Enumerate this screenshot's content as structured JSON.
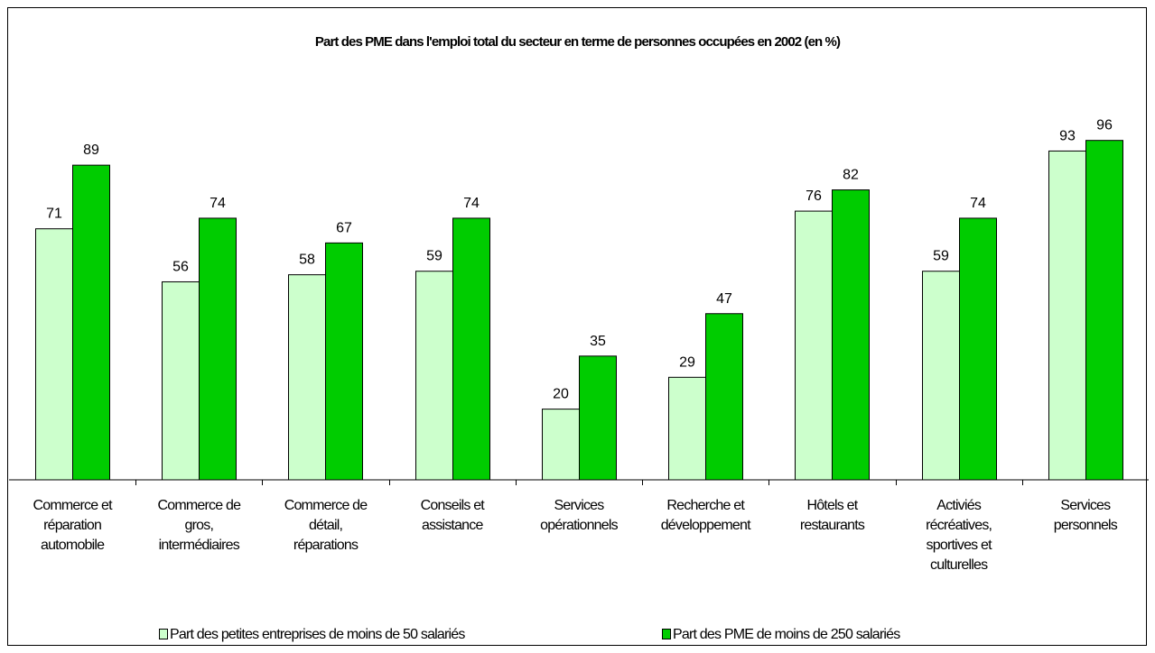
{
  "chart_data": {
    "type": "bar",
    "title": "Part des PME dans l'emploi total du secteur en terme de personnes occupées en 2002 (en %)",
    "xlabel": "",
    "ylabel": "",
    "ylim": [
      0,
      100
    ],
    "grid": false,
    "legend_position": "bottom",
    "categories": [
      [
        "Commerce et",
        "réparation",
        "automobile"
      ],
      [
        "Commerce de",
        "gros,",
        "intermédiaires"
      ],
      [
        "Commerce de",
        "détail,",
        "réparations"
      ],
      [
        "Conseils et",
        "assistance"
      ],
      [
        "Services",
        "opérationnels"
      ],
      [
        "Recherche et",
        "développement"
      ],
      [
        "Hôtels et",
        "restaurants"
      ],
      [
        "Activiés",
        "récréatives,",
        "sportives et",
        "culturelles"
      ],
      [
        "Services",
        "personnels"
      ]
    ],
    "series": [
      {
        "name": "Part des petites entreprises de moins de 50 salariés",
        "color": "#ccffcc",
        "values": [
          71,
          56,
          58,
          59,
          20,
          29,
          76,
          59,
          93
        ]
      },
      {
        "name": "Part des PME de moins de 250 salariés",
        "color": "#00cc00",
        "values": [
          89,
          74,
          67,
          74,
          35,
          47,
          82,
          74,
          96
        ]
      }
    ]
  }
}
